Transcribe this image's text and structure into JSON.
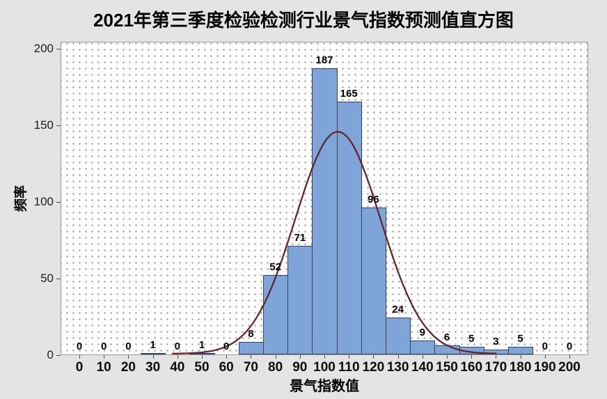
{
  "title": "2021年第三季度检验检测行业景气指数预测值直方图",
  "colors": {
    "background": "#e4e4e4",
    "plot_background": "#ffffff",
    "grid_dot": "#a0a0a0",
    "bar_fill": "#7ea4d8",
    "bar_border": "#31435f",
    "curve": "#64252f",
    "frame": "#9b9b9b",
    "tick": "#4a4a4a",
    "text": "#000000"
  },
  "chart_data": {
    "type": "bar",
    "subtype": "histogram-with-normal-fit",
    "title": "2021年第三季度检验检测行业景气指数预测值直方图",
    "xlabel": "景气指数值",
    "ylabel": "频率",
    "bin_width": 10,
    "bin_centers": [
      0,
      10,
      20,
      30,
      40,
      50,
      60,
      70,
      80,
      90,
      100,
      110,
      120,
      130,
      140,
      150,
      160,
      170,
      180,
      190,
      200
    ],
    "values": [
      0,
      0,
      0,
      1,
      0,
      1,
      0,
      8,
      52,
      71,
      187,
      165,
      96,
      24,
      9,
      6,
      5,
      3,
      5,
      0,
      0
    ],
    "bar_labels": [
      "0",
      "0",
      "0",
      "1",
      "0",
      "1",
      "0",
      "8",
      "52",
      "71",
      "187",
      "165",
      "96",
      "24",
      "9",
      "6",
      "5",
      "3",
      "5",
      "0",
      "0"
    ],
    "x_tick_labels": [
      "0",
      "10",
      "20",
      "30",
      "40",
      "50",
      "60",
      "70",
      "80",
      "90",
      "100",
      "110",
      "120",
      "130",
      "140",
      "150",
      "160",
      "170",
      "180",
      "190",
      "200"
    ],
    "y_tick_values": [
      0,
      50,
      100,
      150,
      200
    ],
    "y_tick_labels": [
      "0",
      "50",
      "100",
      "150",
      "200"
    ],
    "ylim": [
      0,
      200
    ],
    "xlim": [
      -7.7,
      207.7
    ],
    "grid": "dotted",
    "legend_position": "none",
    "fit_curve": {
      "type": "normal",
      "mean": 105.5,
      "sd": 17.4,
      "peak_height": 145,
      "x_start": 38,
      "x_end": 170.5
    }
  }
}
